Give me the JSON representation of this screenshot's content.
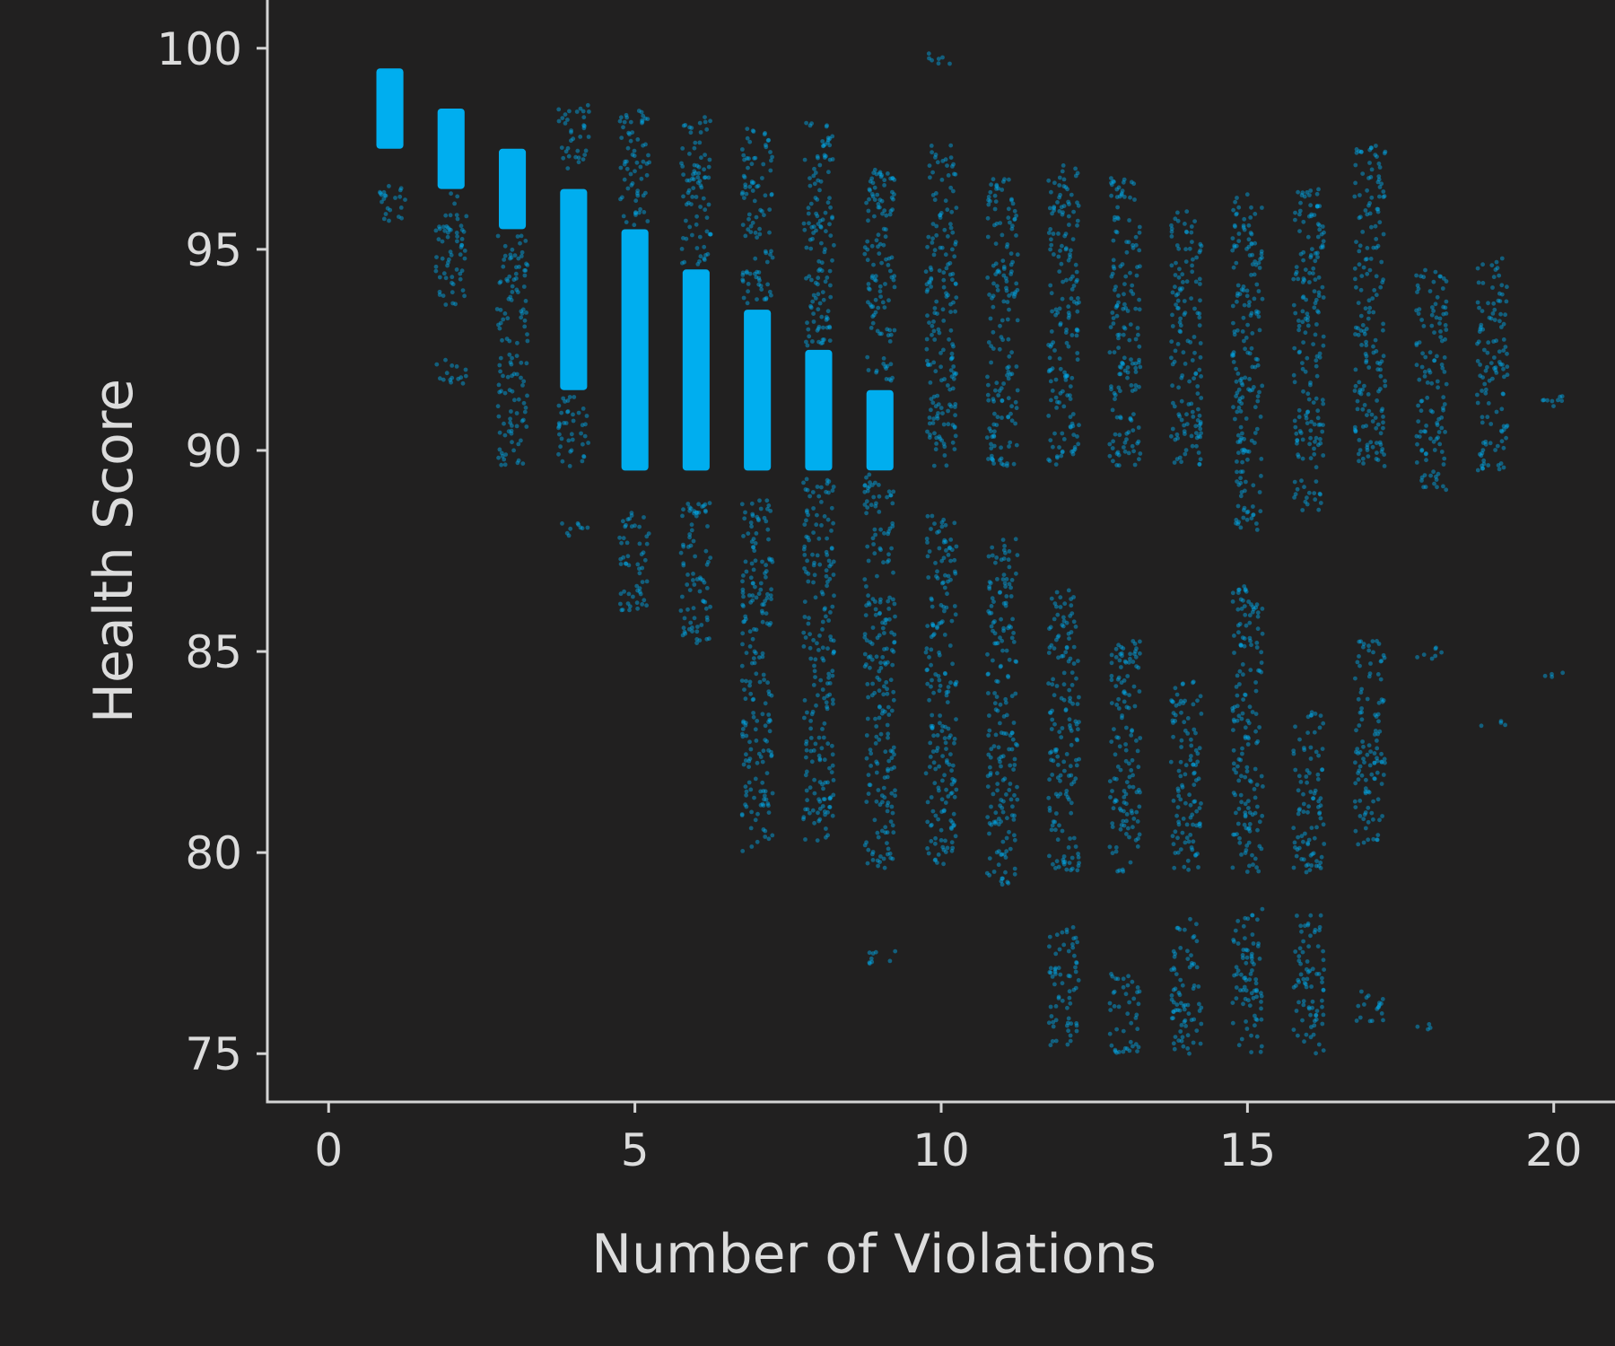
{
  "chart_data": {
    "type": "scatter",
    "title": "",
    "xlabel": "Number of Violations",
    "ylabel": "Health Score",
    "xlim": [
      -1,
      21
    ],
    "ylim": [
      73.8,
      101.2
    ],
    "x_ticks": [
      0,
      5,
      10,
      15,
      20
    ],
    "x_tick_labels": [
      "0",
      "5",
      "10",
      "15",
      "20"
    ],
    "y_ticks": [
      75,
      80,
      85,
      90,
      95,
      100
    ],
    "y_tick_labels": [
      "75",
      "80",
      "85",
      "90",
      "95",
      "100"
    ],
    "grid": false,
    "legend": "none",
    "jitter": 0.25,
    "colors": {
      "background": "#212020",
      "axis": "#d4d4d4",
      "text": "#dcdcdc",
      "points": "#00aeef"
    },
    "bands": [
      {
        "x": 1,
        "dense": [
          97.5,
          99.5
        ],
        "sparse": [
          [
            95.6,
            96.6
          ]
        ]
      },
      {
        "x": 2,
        "dense": [
          96.5,
          98.5
        ],
        "sparse": [
          [
            93.6,
            96.4
          ],
          [
            91.6,
            92.3
          ]
        ]
      },
      {
        "x": 3,
        "dense": [
          95.5,
          97.5
        ],
        "sparse": [
          [
            92.6,
            95.4
          ],
          [
            89.6,
            92.4
          ]
        ]
      },
      {
        "x": 4,
        "dense": [
          91.5,
          96.5
        ],
        "sparse": [
          [
            89.6,
            91.4
          ],
          [
            97,
            98.6
          ],
          [
            87.8,
            88.2
          ]
        ]
      },
      {
        "x": 5,
        "dense": [
          89.5,
          95.5
        ],
        "sparse": [
          [
            95.6,
            98.5
          ],
          [
            86,
            88.5
          ]
        ]
      },
      {
        "x": 6,
        "dense": [
          89.5,
          94.5
        ],
        "sparse": [
          [
            94.6,
            98.3
          ],
          [
            85.2,
            88.8
          ]
        ]
      },
      {
        "x": 7,
        "dense": [
          89.5,
          93.5
        ],
        "sparse": [
          [
            93.6,
            98
          ],
          [
            80,
            88.8
          ]
        ]
      },
      {
        "x": 8,
        "dense": [
          89.5,
          92.5
        ],
        "sparse": [
          [
            92.6,
            98.2
          ],
          [
            80.3,
            89.4
          ]
        ]
      },
      {
        "x": 9,
        "dense": [
          89.5,
          91.5
        ],
        "sparse": [
          [
            91.6,
            97
          ],
          [
            79.6,
            89.4
          ],
          [
            77.2,
            77.6
          ]
        ]
      },
      {
        "x": 10,
        "dense": [],
        "sparse": [
          [
            89.6,
            97.6
          ],
          [
            79.6,
            88.4
          ],
          [
            99.6,
            99.9
          ]
        ]
      },
      {
        "x": 11,
        "dense": [],
        "sparse": [
          [
            89.6,
            96.8
          ],
          [
            79.2,
            87.8
          ]
        ]
      },
      {
        "x": 12,
        "dense": [],
        "sparse": [
          [
            89.6,
            97.1
          ],
          [
            79.5,
            86.6
          ],
          [
            75.2,
            78.2
          ]
        ]
      },
      {
        "x": 13,
        "dense": [],
        "sparse": [
          [
            89.6,
            96.8
          ],
          [
            79.5,
            85.4
          ],
          [
            75,
            77
          ]
        ]
      },
      {
        "x": 14,
        "dense": [],
        "sparse": [
          [
            89.6,
            96
          ],
          [
            79.5,
            84.3
          ],
          [
            75,
            78.4
          ]
        ]
      },
      {
        "x": 15,
        "dense": [],
        "sparse": [
          [
            88,
            96.4
          ],
          [
            79.5,
            86.7
          ],
          [
            75,
            78.6
          ]
        ]
      },
      {
        "x": 16,
        "dense": [],
        "sparse": [
          [
            88.5,
            96.5
          ],
          [
            79.5,
            83.5
          ],
          [
            75,
            78.5
          ]
        ]
      },
      {
        "x": 17,
        "dense": [],
        "sparse": [
          [
            89.6,
            97.6
          ],
          [
            80.2,
            85.3
          ],
          [
            75.8,
            76.6
          ]
        ]
      },
      {
        "x": 18,
        "dense": [],
        "sparse": [
          [
            89,
            94.5
          ],
          [
            84.8,
            85.1
          ],
          [
            75.6,
            75.8
          ]
        ]
      },
      {
        "x": 19,
        "dense": [],
        "sparse": [
          [
            89.5,
            94.8
          ],
          [
            83.1,
            83.3
          ]
        ]
      },
      {
        "x": 20,
        "dense": [],
        "sparse": [
          [
            91,
            91.4
          ],
          [
            84.3,
            84.5
          ]
        ]
      }
    ]
  }
}
